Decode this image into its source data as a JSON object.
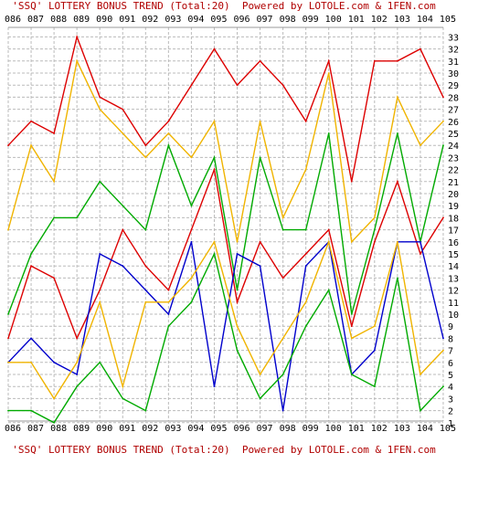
{
  "header": {
    "banner": "'SSQ' LOTTERY BONUS TREND (Total:20)  Powered by LOTOLE.com & 1FEN.com"
  },
  "footer": {
    "banner": "'SSQ' LOTTERY BONUS TREND (Total:20)  Powered by LOTOLE.com & 1FEN.com"
  },
  "chart_data": {
    "type": "line",
    "title": "'SSQ' LOTTERY BONUS TREND (Total:20)",
    "categories": [
      "086",
      "087",
      "088",
      "089",
      "090",
      "091",
      "092",
      "093",
      "094",
      "095",
      "096",
      "097",
      "098",
      "099",
      "100",
      "101",
      "102",
      "103",
      "104",
      "105"
    ],
    "yticks": [
      1,
      2,
      3,
      4,
      5,
      6,
      7,
      8,
      9,
      10,
      11,
      12,
      13,
      14,
      15,
      16,
      17,
      18,
      19,
      20,
      21,
      22,
      23,
      24,
      25,
      26,
      27,
      28,
      29,
      30,
      31,
      32,
      33
    ],
    "ylim": [
      0,
      34
    ],
    "grid": true,
    "series": [
      {
        "color": "#dd0000",
        "values": [
          24,
          26,
          25,
          33,
          28,
          27,
          24,
          26,
          29,
          32,
          29,
          31,
          29,
          26,
          31,
          21,
          31,
          31,
          32,
          28
        ]
      },
      {
        "color": "#f0b400",
        "values": [
          17,
          24,
          21,
          31,
          27,
          25,
          23,
          25,
          23,
          26,
          16,
          26,
          18,
          22,
          30,
          16,
          18,
          28,
          24,
          26
        ]
      },
      {
        "color": "#00aa00",
        "values": [
          10,
          15,
          18,
          18,
          21,
          19,
          17,
          24,
          19,
          23,
          12,
          23,
          17,
          17,
          25,
          10,
          17,
          25,
          16,
          24
        ]
      },
      {
        "color": "#dd0000",
        "values": [
          8,
          14,
          13,
          8,
          12,
          17,
          14,
          12,
          17,
          22,
          11,
          16,
          13,
          15,
          17,
          9,
          16,
          21,
          15,
          18
        ]
      },
      {
        "color": "#0000cc",
        "values": [
          6,
          8,
          6,
          5,
          15,
          14,
          12,
          10,
          16,
          4,
          15,
          14,
          2,
          14,
          16,
          5,
          7,
          16,
          16,
          8
        ]
      },
      {
        "color": "#f0b400",
        "values": [
          6,
          6,
          3,
          6,
          11,
          4,
          11,
          11,
          13,
          16,
          9,
          5,
          8,
          11,
          16,
          8,
          9,
          16,
          5,
          7
        ]
      },
      {
        "color": "#00aa00",
        "values": [
          2,
          2,
          1,
          4,
          6,
          3,
          2,
          9,
          11,
          15,
          7,
          3,
          5,
          9,
          12,
          5,
          4,
          13,
          2,
          4
        ]
      }
    ]
  }
}
